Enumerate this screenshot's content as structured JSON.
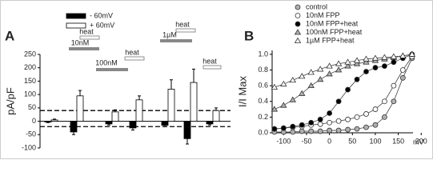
{
  "chart_data": [
    {
      "type": "bar",
      "panel_label": "A",
      "y_label": "pA/pF",
      "categories": [
        null,
        null,
        null,
        null,
        null,
        null,
        null
      ],
      "series": [
        {
          "name": "- 60mV",
          "color": "#000000",
          "values": [
            -3,
            -40,
            -10,
            -25,
            -15,
            -65,
            -10
          ],
          "errors": [
            2,
            10,
            4,
            8,
            5,
            20,
            4
          ]
        },
        {
          "name": "+ 60mV",
          "color": "#ffffff",
          "values": [
            5,
            95,
            35,
            80,
            120,
            145,
            40
          ],
          "errors": [
            3,
            20,
            8,
            15,
            35,
            50,
            10
          ]
        }
      ],
      "ylim": [
        -100,
        250
      ],
      "yticks": [
        -100,
        -50,
        0,
        50,
        100,
        150,
        200,
        250
      ],
      "reference_lines": [
        40,
        -20
      ],
      "annotations": [
        "10nM",
        "heat",
        "100nM",
        "heat",
        "1µM",
        "heat",
        "heat"
      ]
    },
    {
      "type": "scatter",
      "panel_label": "B",
      "y_label": "I/I Max",
      "x_label": "mV",
      "x": [
        -120,
        -100,
        -80,
        -60,
        -40,
        -20,
        0,
        20,
        40,
        60,
        80,
        100,
        120,
        140,
        160,
        180
      ],
      "series": [
        {
          "name": "control",
          "color": "#b0b0b0",
          "marker": "circle",
          "values": [
            0.01,
            0.01,
            0.01,
            0.02,
            0.02,
            0.02,
            0.03,
            0.03,
            0.04,
            0.05,
            0.07,
            0.1,
            0.2,
            0.4,
            0.7,
            0.95
          ]
        },
        {
          "name": "10nM FPP",
          "color": "#ffffff",
          "marker": "circle",
          "values": [
            0.05,
            0.06,
            0.07,
            0.08,
            0.1,
            0.11,
            0.13,
            0.15,
            0.17,
            0.2,
            0.24,
            0.3,
            0.4,
            0.6,
            0.8,
            0.97
          ]
        },
        {
          "name": "10nM FPP+heat",
          "color": "#000000",
          "marker": "circle",
          "values": [
            0.05,
            0.06,
            0.08,
            0.1,
            0.13,
            0.17,
            0.25,
            0.4,
            0.55,
            0.68,
            0.78,
            0.83,
            0.85,
            0.9,
            0.95,
            1.0
          ]
        },
        {
          "name": "100nM FPP+heat",
          "color": "#b0b0b0",
          "marker": "triangle",
          "values": [
            0.3,
            0.35,
            0.42,
            0.5,
            0.6,
            0.68,
            0.75,
            0.8,
            0.85,
            0.88,
            0.9,
            0.92,
            0.94,
            0.96,
            0.98,
            1.0
          ]
        },
        {
          "name": "1µM FPP+heat",
          "color": "#ffffff",
          "marker": "triangle",
          "values": [
            0.58,
            0.62,
            0.67,
            0.72,
            0.77,
            0.81,
            0.85,
            0.88,
            0.9,
            0.92,
            0.94,
            0.95,
            0.96,
            0.97,
            0.98,
            1.0
          ]
        }
      ],
      "xlim": [
        -125,
        210
      ],
      "xticks": [
        -100,
        -50,
        0,
        50,
        100,
        150,
        200
      ],
      "ylim": [
        0,
        1.05
      ],
      "yticks": [
        {
          "value": 0,
          "label": "0.0"
        },
        {
          "value": 0.2,
          "label": "0.2"
        },
        {
          "value": 0.4,
          "label": "0.4"
        },
        {
          "value": 0.6,
          "label": "0.6"
        },
        {
          "value": 0.8,
          "label": "0.8"
        },
        {
          "value": 1,
          "label": "1.0"
        }
      ]
    }
  ]
}
